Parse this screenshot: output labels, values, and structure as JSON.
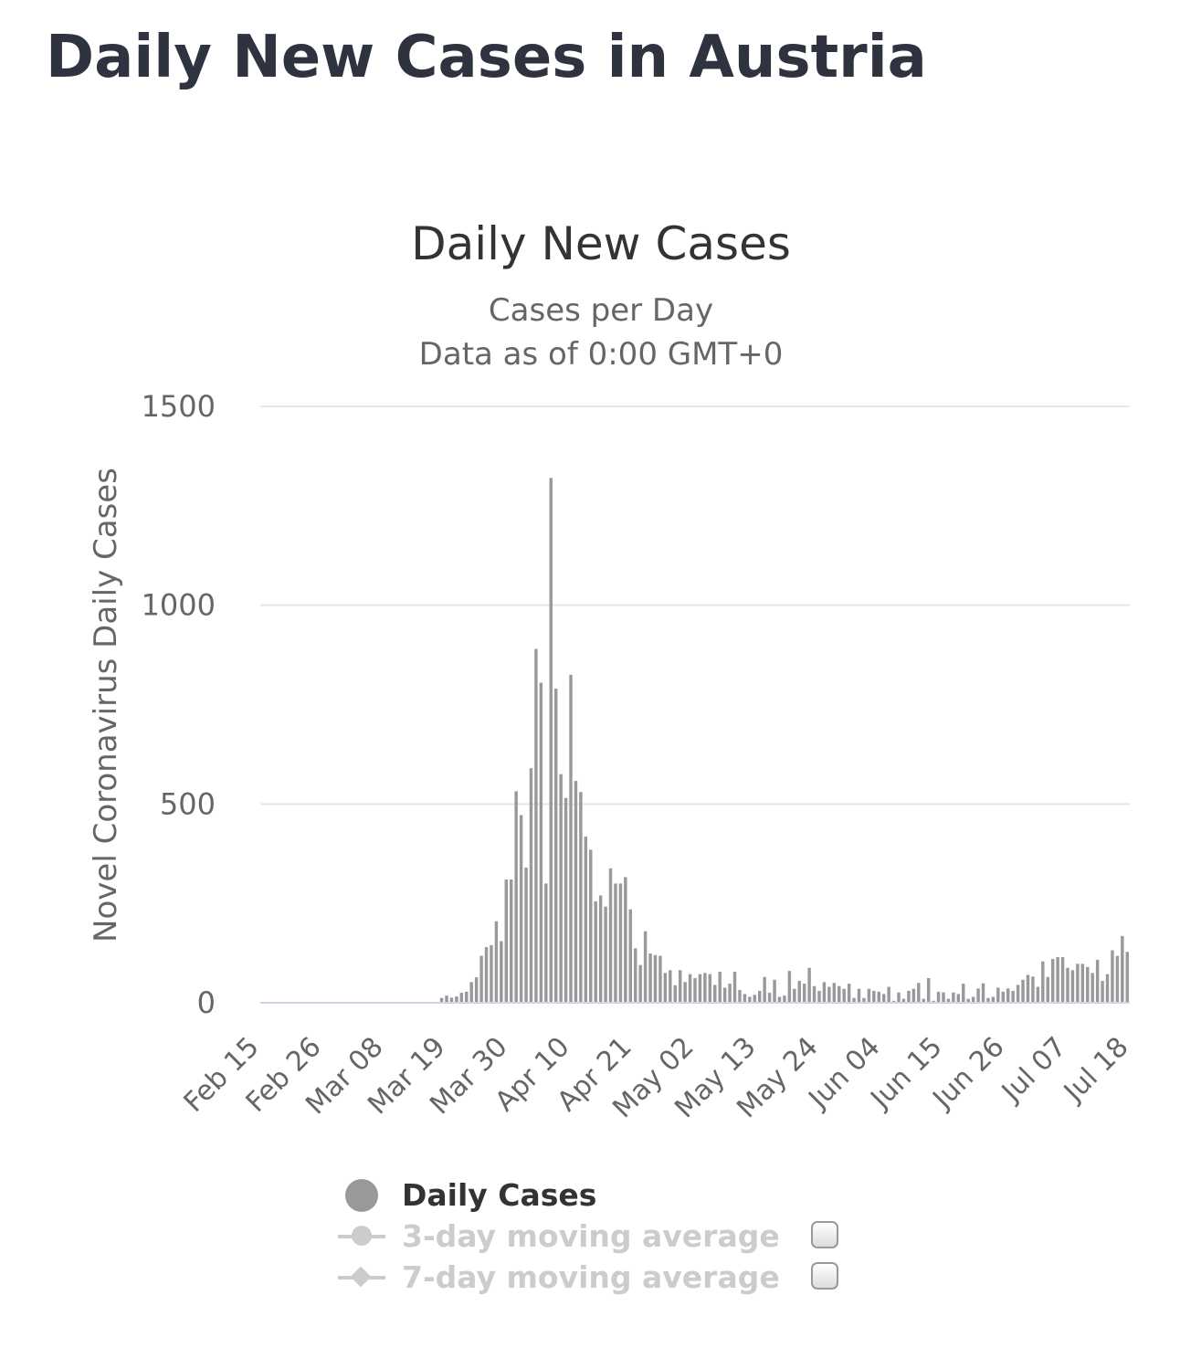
{
  "page": {
    "title": "Daily New Cases in Austria"
  },
  "legend": {
    "items": [
      {
        "label": "Daily Cases",
        "active": true
      },
      {
        "label": "3-day moving average",
        "active": false
      },
      {
        "label": "7-day moving average",
        "active": false
      }
    ]
  },
  "chart_data": {
    "type": "bar",
    "title": "Daily New Cases",
    "subtitle_lines": [
      "Cases per Day",
      "Data as of 0:00 GMT+0"
    ],
    "ylabel": "Novel Coronavirus Daily Cases",
    "xlabel": "",
    "ylim": [
      0,
      1500
    ],
    "yticks": [
      0,
      500,
      1000,
      1500
    ],
    "grid": true,
    "legend_position": "bottom",
    "x_start": "Feb 15",
    "x_end": "Jul 18",
    "x_tick_labels": [
      "Feb 15",
      "Feb 26",
      "Mar 08",
      "Mar 19",
      "Mar 30",
      "Apr 10",
      "Apr 21",
      "May 02",
      "May 13",
      "May 24",
      "Jun 04",
      "Jun 15",
      "Jun 26",
      "Jul 07",
      "Jul 18"
    ],
    "colors": {
      "bars": "#999999",
      "zero_line": "#ccd6eb",
      "grid": "#e6e6e6"
    },
    "series": [
      {
        "name": "Daily Cases",
        "values": [
          0,
          0,
          0,
          0,
          0,
          0,
          0,
          0,
          0,
          0,
          0,
          0,
          0,
          0,
          0,
          0,
          0,
          0,
          0,
          0,
          0,
          0,
          0,
          0,
          0,
          0,
          0,
          0,
          0,
          0,
          0,
          0,
          0,
          0,
          0,
          0,
          12,
          18,
          13,
          16,
          25,
          28,
          52,
          64,
          118,
          140,
          145,
          205,
          155,
          310,
          310,
          532,
          472,
          340,
          590,
          890,
          805,
          300,
          1320,
          790,
          575,
          515,
          825,
          558,
          530,
          418,
          385,
          255,
          270,
          242,
          338,
          300,
          300,
          316,
          235,
          137,
          95,
          180,
          124,
          120,
          118,
          75,
          82,
          44,
          82,
          52,
          72,
          62,
          72,
          75,
          72,
          45,
          78,
          38,
          48,
          78,
          32,
          22,
          15,
          20,
          30,
          65,
          25,
          58,
          15,
          18,
          80,
          35,
          55,
          48,
          88,
          42,
          30,
          52,
          40,
          50,
          42,
          35,
          48,
          12,
          35,
          12,
          35,
          30,
          28,
          22,
          40,
          5,
          26,
          10,
          30,
          35,
          50,
          10,
          62,
          5,
          28,
          26,
          10,
          26,
          22,
          48,
          10,
          15,
          36,
          49,
          12,
          15,
          38,
          28,
          36,
          30,
          45,
          58,
          70,
          66,
          40,
          104,
          65,
          110,
          115,
          115,
          88,
          82,
          98,
          98,
          90,
          75,
          108,
          55,
          72,
          132,
          118,
          168,
          128
        ]
      }
    ]
  }
}
